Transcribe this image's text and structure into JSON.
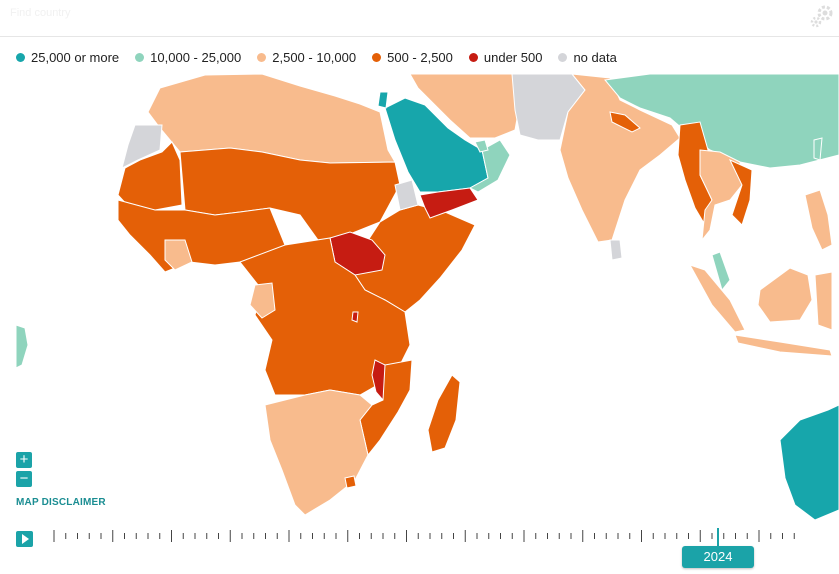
{
  "header": {
    "search_placeholder": "Find country"
  },
  "legend": [
    {
      "label": "25,000 or more",
      "color": "#17a6ab"
    },
    {
      "label": "10,000 - 25,000",
      "color": "#8fd4bd"
    },
    {
      "label": "2,500 - 10,000",
      "color": "#f8bb8d"
    },
    {
      "label": "500 - 2,500",
      "color": "#e46007"
    },
    {
      "label": "under 500",
      "color": "#c61c12"
    },
    {
      "label": "no data",
      "color": "#d4d5d9"
    }
  ],
  "controls": {
    "zoom_in": "+",
    "zoom_out": "−",
    "disclaimer": "MAP DISCLAIMER",
    "year": "2024"
  },
  "colors": {
    "teal": "#17a6ab",
    "mint": "#8fd4bd",
    "peach": "#f8bb8d",
    "orange": "#e46007",
    "red": "#c61c12",
    "grey": "#d4d5d9",
    "border": "#ffffff"
  },
  "regions": [
    {
      "name": "north-africa",
      "category": "2,500 - 10,000"
    },
    {
      "name": "west-africa",
      "category": "500 - 2,500"
    },
    {
      "name": "sahel",
      "category": "500 - 2,500"
    },
    {
      "name": "horn-of-africa",
      "category": "500 - 2,500"
    },
    {
      "name": "south-sudan",
      "category": "under 500"
    },
    {
      "name": "malawi",
      "category": "under 500"
    },
    {
      "name": "central-africa",
      "category": "500 - 2,500"
    },
    {
      "name": "southern-africa",
      "category": "2,500 - 10,000"
    },
    {
      "name": "madagascar",
      "category": "500 - 2,500"
    },
    {
      "name": "saudi-arabia",
      "category": "25,000 or more"
    },
    {
      "name": "yemen",
      "category": "under 500"
    },
    {
      "name": "oman",
      "category": "10,000 - 25,000"
    },
    {
      "name": "iran",
      "category": "2,500 - 10,000"
    },
    {
      "name": "afghanistan",
      "category": "no data"
    },
    {
      "name": "india",
      "category": "2,500 - 10,000"
    },
    {
      "name": "nepal",
      "category": "500 - 2,500"
    },
    {
      "name": "myanmar",
      "category": "500 - 2,500"
    },
    {
      "name": "china",
      "category": "10,000 - 25,000"
    },
    {
      "name": "southeast-asia",
      "category": "2,500 - 10,000"
    },
    {
      "name": "australia",
      "category": "25,000 or more"
    }
  ]
}
